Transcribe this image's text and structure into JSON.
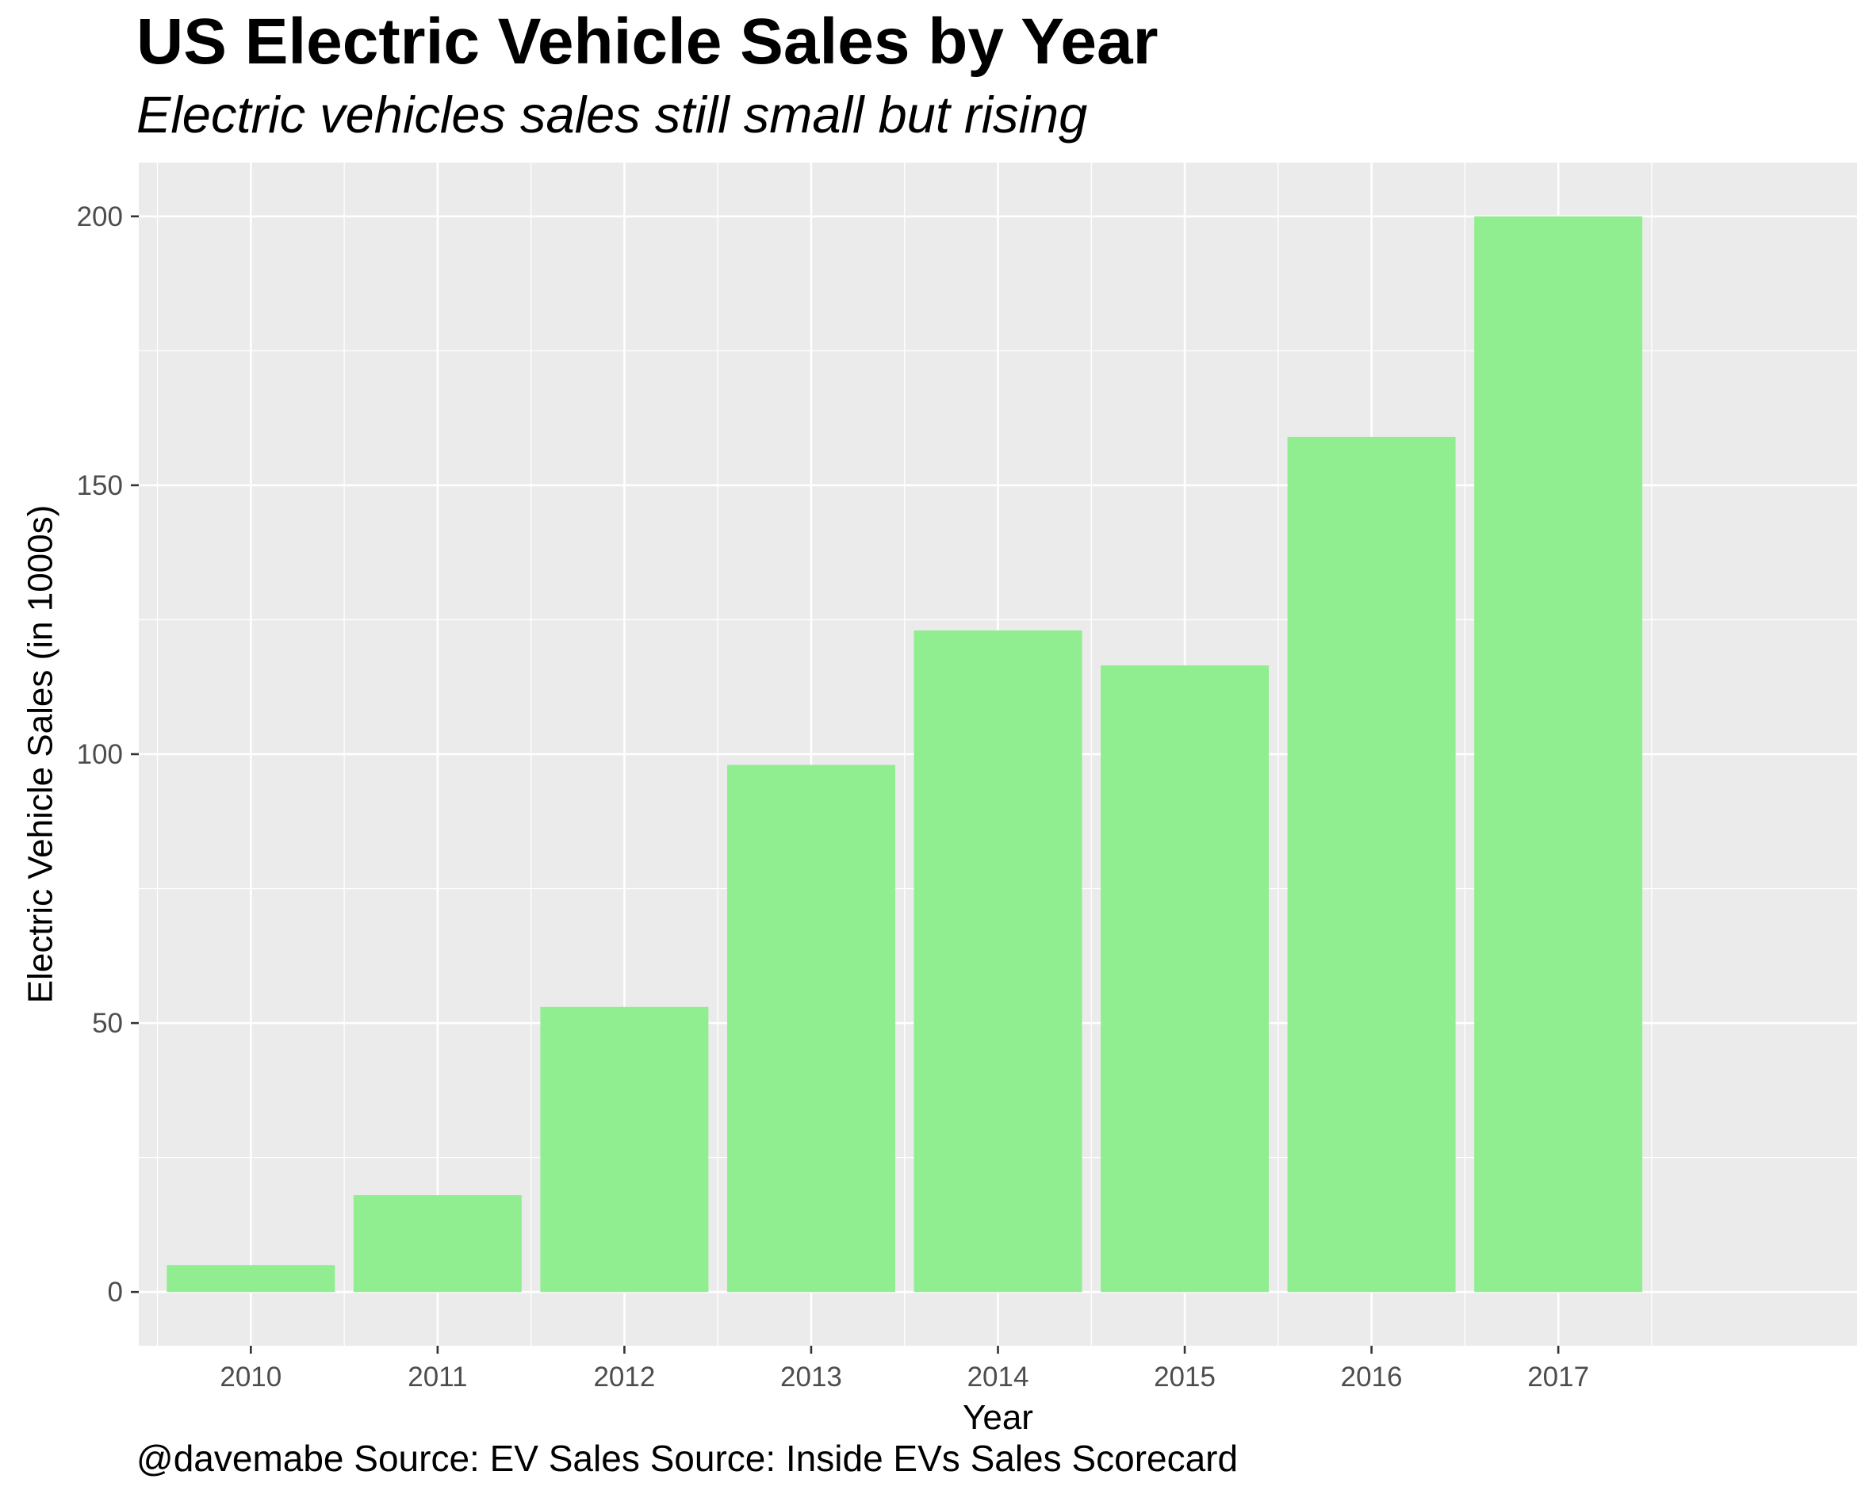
{
  "colors": {
    "panel_background": "#ebebeb",
    "grid_line": "#ffffff",
    "bar_fill": "#90ee90",
    "tick_text": "#4d4d4d",
    "tick_mark": "#333333"
  },
  "chart_data": {
    "type": "bar",
    "title": "US Electric Vehicle Sales by Year",
    "subtitle": "Electric vehicles sales still small but rising",
    "xlabel": "Year",
    "ylabel": "Electric Vehicle Sales (in 1000s)",
    "caption": "@davemabe Source: EV Sales Source: Inside EVs Sales Scorecard",
    "categories": [
      "2010",
      "2011",
      "2012",
      "2013",
      "2014",
      "2015",
      "2016",
      "2017"
    ],
    "values": [
      5,
      18,
      53,
      98,
      123,
      116.5,
      159,
      200
    ],
    "ylim": [
      -10,
      210
    ],
    "yticks": [
      0,
      50,
      100,
      150,
      200
    ],
    "grid": true,
    "legend": "none"
  }
}
